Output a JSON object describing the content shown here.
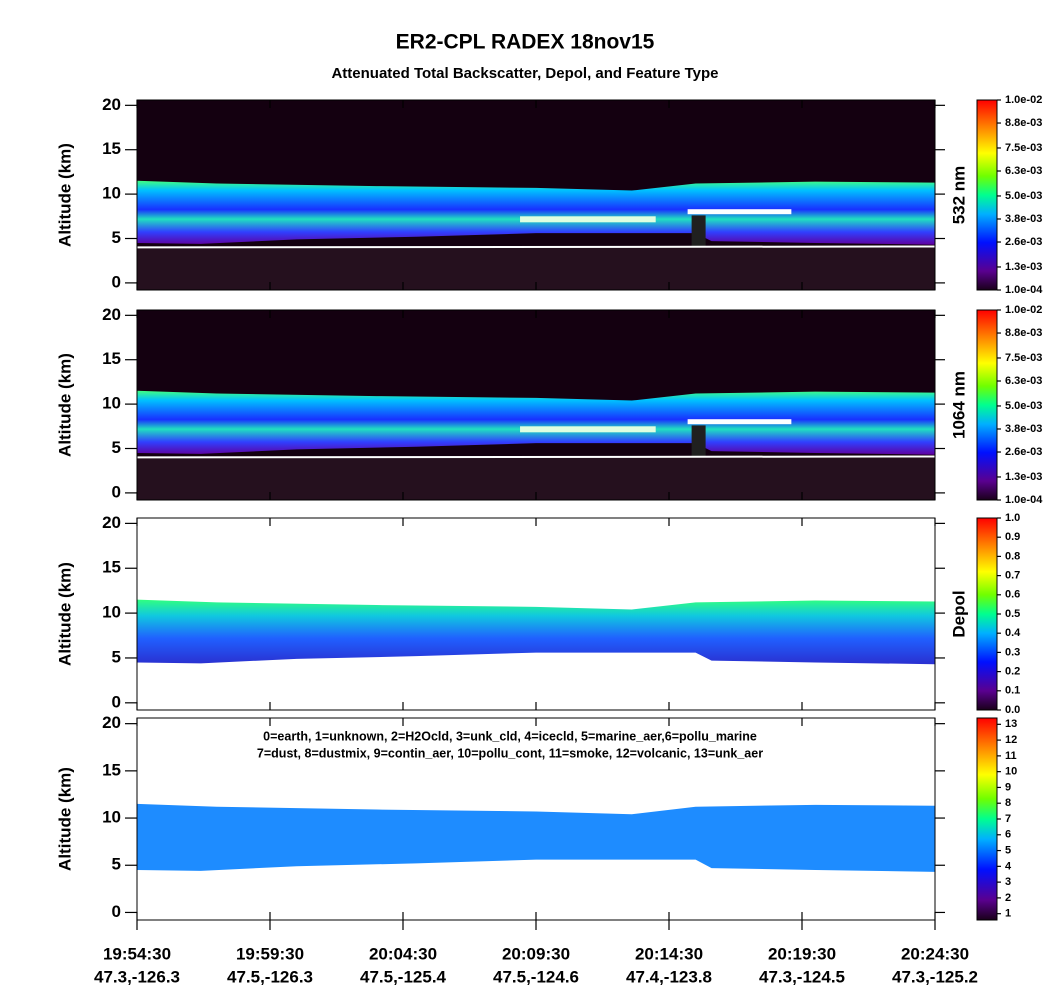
{
  "title": "ER2-CPL RADEX 18nov15",
  "subtitle": "Attenuated Total Backscatter, Depol, and Feature Type",
  "x_labels": {
    "times": [
      "19:54:30",
      "19:59:30",
      "20:04:30",
      "20:09:30",
      "20:14:30",
      "20:19:30",
      "20:24:30"
    ],
    "positions": [
      "47.3,-126.3",
      "47.5,-126.3",
      "47.5,-125.4",
      "47.5,-124.6",
      "47.4,-123.8",
      "47.3,-124.5",
      "47.3,-125.2"
    ]
  },
  "chart_data": [
    {
      "type": "heatmap",
      "y_label": "Altitude (km)",
      "ylim": [
        -0.8,
        20.6
      ],
      "yticks": [
        0,
        5,
        10,
        15,
        20
      ],
      "colorbar_label": "532 nm",
      "colorbar_lim": [
        0.0001,
        0.01
      ],
      "colorbar_ticks": [
        {
          "value": 0.0001,
          "label": "1.0e-04"
        },
        {
          "value": 0.0013,
          "label": "1.3e-03"
        },
        {
          "value": 0.0026,
          "label": "2.6e-03"
        },
        {
          "value": 0.0038,
          "label": "3.8e-03"
        },
        {
          "value": 0.005,
          "label": "5.0e-03"
        },
        {
          "value": 0.0063,
          "label": "6.3e-03"
        },
        {
          "value": 0.0075,
          "label": "7.5e-03"
        },
        {
          "value": 0.0088,
          "label": "8.8e-03"
        },
        {
          "value": 0.01,
          "label": "1.0e-02"
        }
      ]
    },
    {
      "type": "heatmap",
      "y_label": "Altitude (km)",
      "ylim": [
        -0.8,
        20.6
      ],
      "yticks": [
        0,
        5,
        10,
        15,
        20
      ],
      "colorbar_label": "1064 nm",
      "colorbar_lim": [
        0.0001,
        0.01
      ],
      "colorbar_ticks": [
        {
          "value": 0.0001,
          "label": "1.0e-04"
        },
        {
          "value": 0.0013,
          "label": "1.3e-03"
        },
        {
          "value": 0.0026,
          "label": "2.6e-03"
        },
        {
          "value": 0.0038,
          "label": "3.8e-03"
        },
        {
          "value": 0.005,
          "label": "5.0e-03"
        },
        {
          "value": 0.0063,
          "label": "6.3e-03"
        },
        {
          "value": 0.0075,
          "label": "7.5e-03"
        },
        {
          "value": 0.0088,
          "label": "8.8e-03"
        },
        {
          "value": 0.01,
          "label": "1.0e-02"
        }
      ]
    },
    {
      "type": "depol",
      "y_label": "Altitude (km)",
      "ylim": [
        -0.8,
        20.6
      ],
      "yticks": [
        0,
        5,
        10,
        15,
        20
      ],
      "colorbar_label": "Depol",
      "colorbar_lim": [
        0,
        1
      ],
      "colorbar_ticks": [
        {
          "value": 0,
          "label": "0.0"
        },
        0.1,
        0.2,
        0.3,
        0.4,
        0.5,
        0.6,
        0.7,
        0.8,
        0.9,
        {
          "value": 1,
          "label": "1.0"
        }
      ]
    },
    {
      "type": "feature",
      "y_label": "Altitude (km)",
      "ylim": [
        -0.8,
        20.6
      ],
      "yticks": [
        0,
        5,
        10,
        15,
        20
      ],
      "colorbar_lim": [
        0.6,
        13.4
      ],
      "colorbar_ticks": [
        1,
        2,
        3,
        4,
        5,
        6,
        7,
        8,
        9,
        10,
        11,
        12,
        13
      ],
      "annotations": [
        "0=earth, 1=unknown, 2=H2Ocld, 3=unk_cld, 4=icecld, 5=marine_aer,6=pollu_marine",
        "7=dust, 8=dustmix, 9=contin_aer, 10=pollu_cont, 11=smoke, 12=volcanic, 13=unk_aer"
      ]
    }
  ]
}
